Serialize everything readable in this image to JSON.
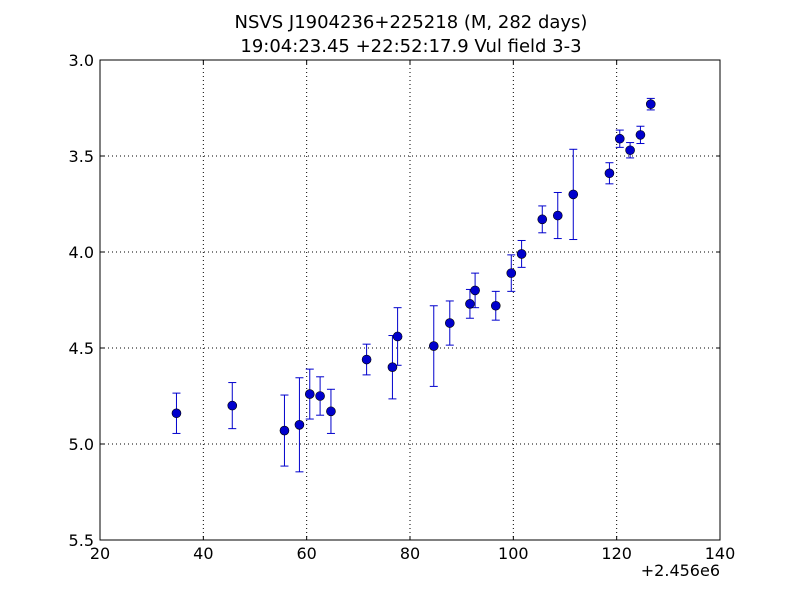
{
  "chart_data": {
    "type": "scatter",
    "title": "NSVS J1904236+225218 (M, 282 days)",
    "subtitle": "19:04:23.45 +22:52:17.9 Vul field 3-3",
    "xlabel": "",
    "ylabel": "",
    "x_offset_label": "+2.456e6",
    "xlim": [
      20,
      140
    ],
    "ylim": [
      5.5,
      3.0
    ],
    "y_inverted": true,
    "grid": true,
    "x_ticks": [
      "20",
      "40",
      "60",
      "80",
      "100",
      "120",
      "140"
    ],
    "y_ticks": [
      "3.0",
      "3.5",
      "4.0",
      "4.5",
      "5.0",
      "5.5"
    ],
    "marker_color": "#0000cc",
    "errorbar_color": "#0000cc",
    "points": [
      {
        "x": 34.8,
        "y": 4.84,
        "err": 0.105
      },
      {
        "x": 45.6,
        "y": 4.8,
        "err": 0.12
      },
      {
        "x": 55.7,
        "y": 4.93,
        "err": 0.185
      },
      {
        "x": 58.6,
        "y": 4.9,
        "err": 0.245
      },
      {
        "x": 60.6,
        "y": 4.74,
        "err": 0.13
      },
      {
        "x": 62.6,
        "y": 4.75,
        "err": 0.1
      },
      {
        "x": 64.7,
        "y": 4.83,
        "err": 0.115
      },
      {
        "x": 71.6,
        "y": 4.56,
        "err": 0.08
      },
      {
        "x": 76.6,
        "y": 4.6,
        "err": 0.165
      },
      {
        "x": 77.6,
        "y": 4.44,
        "err": 0.15
      },
      {
        "x": 84.6,
        "y": 4.49,
        "err": 0.21
      },
      {
        "x": 87.7,
        "y": 4.37,
        "err": 0.115
      },
      {
        "x": 91.6,
        "y": 4.27,
        "err": 0.075
      },
      {
        "x": 92.6,
        "y": 4.2,
        "err": 0.09
      },
      {
        "x": 96.6,
        "y": 4.28,
        "err": 0.075
      },
      {
        "x": 99.6,
        "y": 4.11,
        "err": 0.095
      },
      {
        "x": 101.6,
        "y": 4.01,
        "err": 0.07
      },
      {
        "x": 105.6,
        "y": 3.83,
        "err": 0.07
      },
      {
        "x": 108.6,
        "y": 3.81,
        "err": 0.12
      },
      {
        "x": 111.6,
        "y": 3.7,
        "err": 0.235
      },
      {
        "x": 118.6,
        "y": 3.59,
        "err": 0.055
      },
      {
        "x": 120.6,
        "y": 3.41,
        "err": 0.045
      },
      {
        "x": 122.6,
        "y": 3.47,
        "err": 0.04
      },
      {
        "x": 124.6,
        "y": 3.39,
        "err": 0.045
      },
      {
        "x": 126.6,
        "y": 3.23,
        "err": 0.03
      }
    ]
  }
}
